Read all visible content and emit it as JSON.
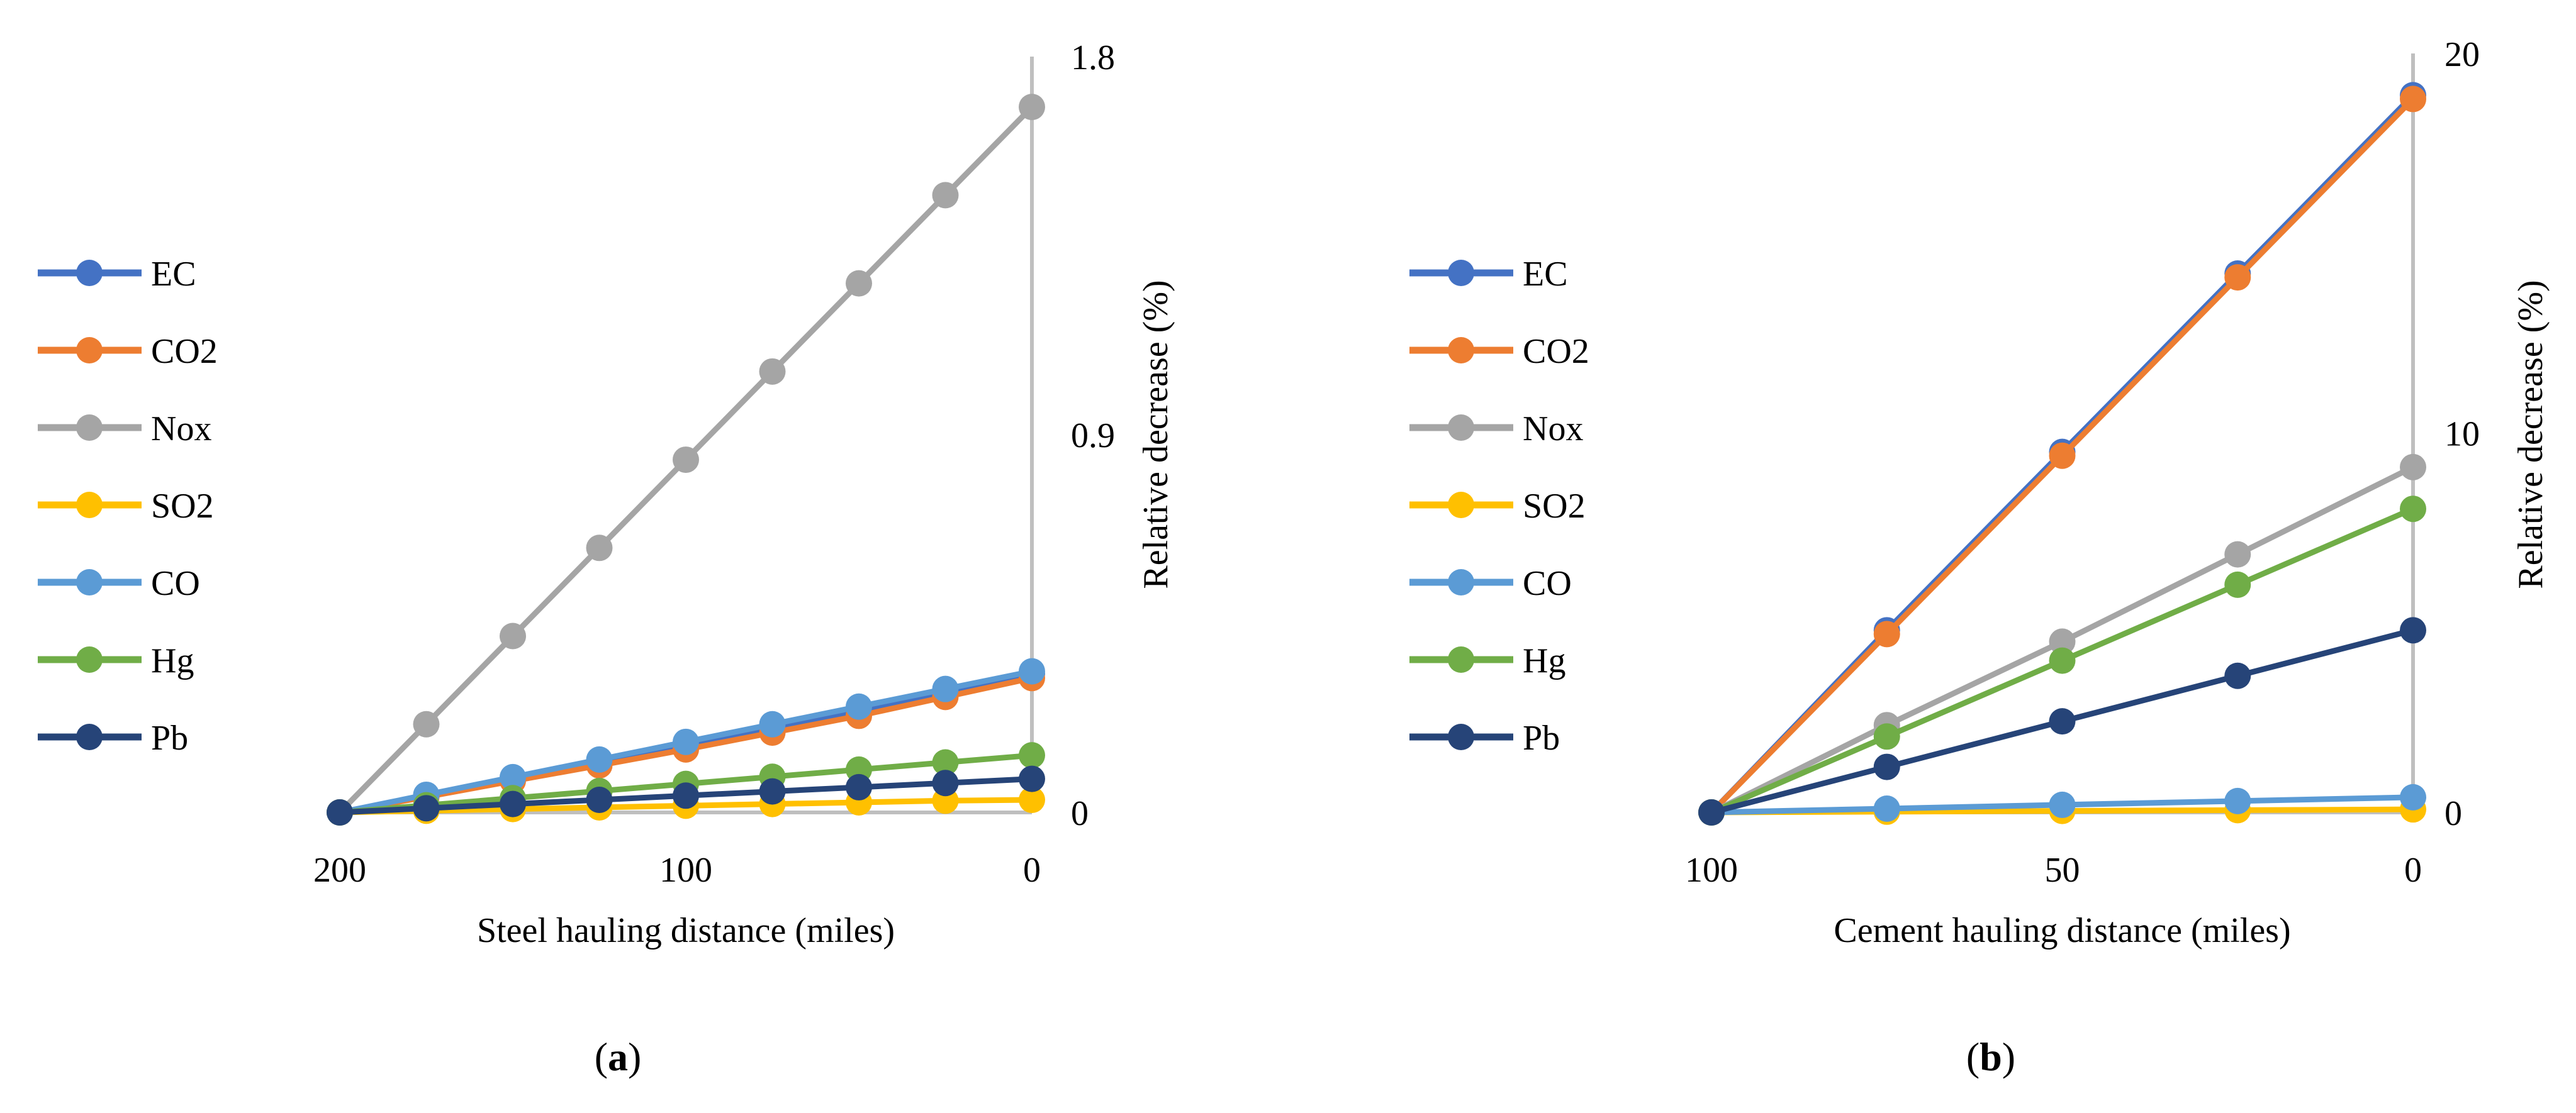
{
  "colors": {
    "EC": "#4472C4",
    "CO2": "#ED7D31",
    "Nox": "#A5A5A5",
    "SO2": "#FFC000",
    "CO": "#5B9BD5",
    "Hg": "#70AD47",
    "Pb": "#264478",
    "axis": "#BFBFBF"
  },
  "chart_data": [
    {
      "type": "line",
      "panel_label": "a",
      "xlabel": "Steel hauling distance (miles)",
      "ylabel": "Relative decrease (%)",
      "x": [
        200,
        175,
        150,
        125,
        100,
        75,
        50,
        25,
        0
      ],
      "xlim": [
        200,
        0
      ],
      "ylim": [
        0,
        1.8
      ],
      "xticks": [
        "200",
        "100",
        "0"
      ],
      "xtick_values": [
        200,
        100,
        0
      ],
      "yticks": [
        "0",
        "0.9",
        "1.8"
      ],
      "ytick_values": [
        0,
        0.9,
        1.8
      ],
      "legend_position": "left",
      "series": [
        {
          "name": "EC",
          "values": [
            0,
            0.04,
            0.08,
            0.12,
            0.16,
            0.2,
            0.24,
            0.285,
            0.33
          ]
        },
        {
          "name": "CO2",
          "values": [
            0,
            0.037,
            0.075,
            0.112,
            0.15,
            0.19,
            0.23,
            0.275,
            0.32
          ]
        },
        {
          "name": "Nox",
          "values": [
            0,
            0.21,
            0.42,
            0.63,
            0.84,
            1.05,
            1.26,
            1.47,
            1.68
          ]
        },
        {
          "name": "SO2",
          "values": [
            0,
            0.004,
            0.008,
            0.012,
            0.016,
            0.02,
            0.024,
            0.028,
            0.03
          ]
        },
        {
          "name": "CO",
          "values": [
            0,
            0.042,
            0.084,
            0.126,
            0.168,
            0.21,
            0.252,
            0.294,
            0.336
          ]
        },
        {
          "name": "Hg",
          "values": [
            0,
            0.017,
            0.034,
            0.051,
            0.068,
            0.085,
            0.102,
            0.119,
            0.136
          ]
        },
        {
          "name": "Pb",
          "values": [
            0,
            0.01,
            0.02,
            0.03,
            0.04,
            0.05,
            0.06,
            0.07,
            0.08
          ]
        }
      ]
    },
    {
      "type": "line",
      "panel_label": "b",
      "xlabel": "Cement hauling distance (miles)",
      "ylabel": "Relative decrease (%)",
      "x": [
        100,
        75,
        50,
        25,
        0
      ],
      "xlim": [
        100,
        0
      ],
      "ylim": [
        0,
        20
      ],
      "xticks": [
        "100",
        "50",
        "0"
      ],
      "xtick_values": [
        100,
        50,
        0
      ],
      "yticks": [
        "0",
        "10",
        "20"
      ],
      "ytick_values": [
        0,
        10,
        20
      ],
      "legend_position": "left",
      "series": [
        {
          "name": "EC",
          "values": [
            0,
            4.8,
            9.5,
            14.2,
            18.9
          ]
        },
        {
          "name": "CO2",
          "values": [
            0,
            4.7,
            9.4,
            14.1,
            18.8
          ]
        },
        {
          "name": "Nox",
          "values": [
            0,
            2.3,
            4.5,
            6.8,
            9.1
          ]
        },
        {
          "name": "SO2",
          "values": [
            0,
            0.02,
            0.04,
            0.06,
            0.08
          ]
        },
        {
          "name": "CO",
          "values": [
            0,
            0.1,
            0.2,
            0.3,
            0.4
          ]
        },
        {
          "name": "Hg",
          "values": [
            0,
            2.0,
            4.0,
            6.0,
            8.0
          ]
        },
        {
          "name": "Pb",
          "values": [
            0,
            1.2,
            2.4,
            3.6,
            4.8
          ]
        }
      ]
    }
  ],
  "captions": {
    "a": {
      "open": "(",
      "letter": "a",
      "close": ")"
    },
    "b": {
      "open": "(",
      "letter": "b",
      "close": ")"
    }
  }
}
